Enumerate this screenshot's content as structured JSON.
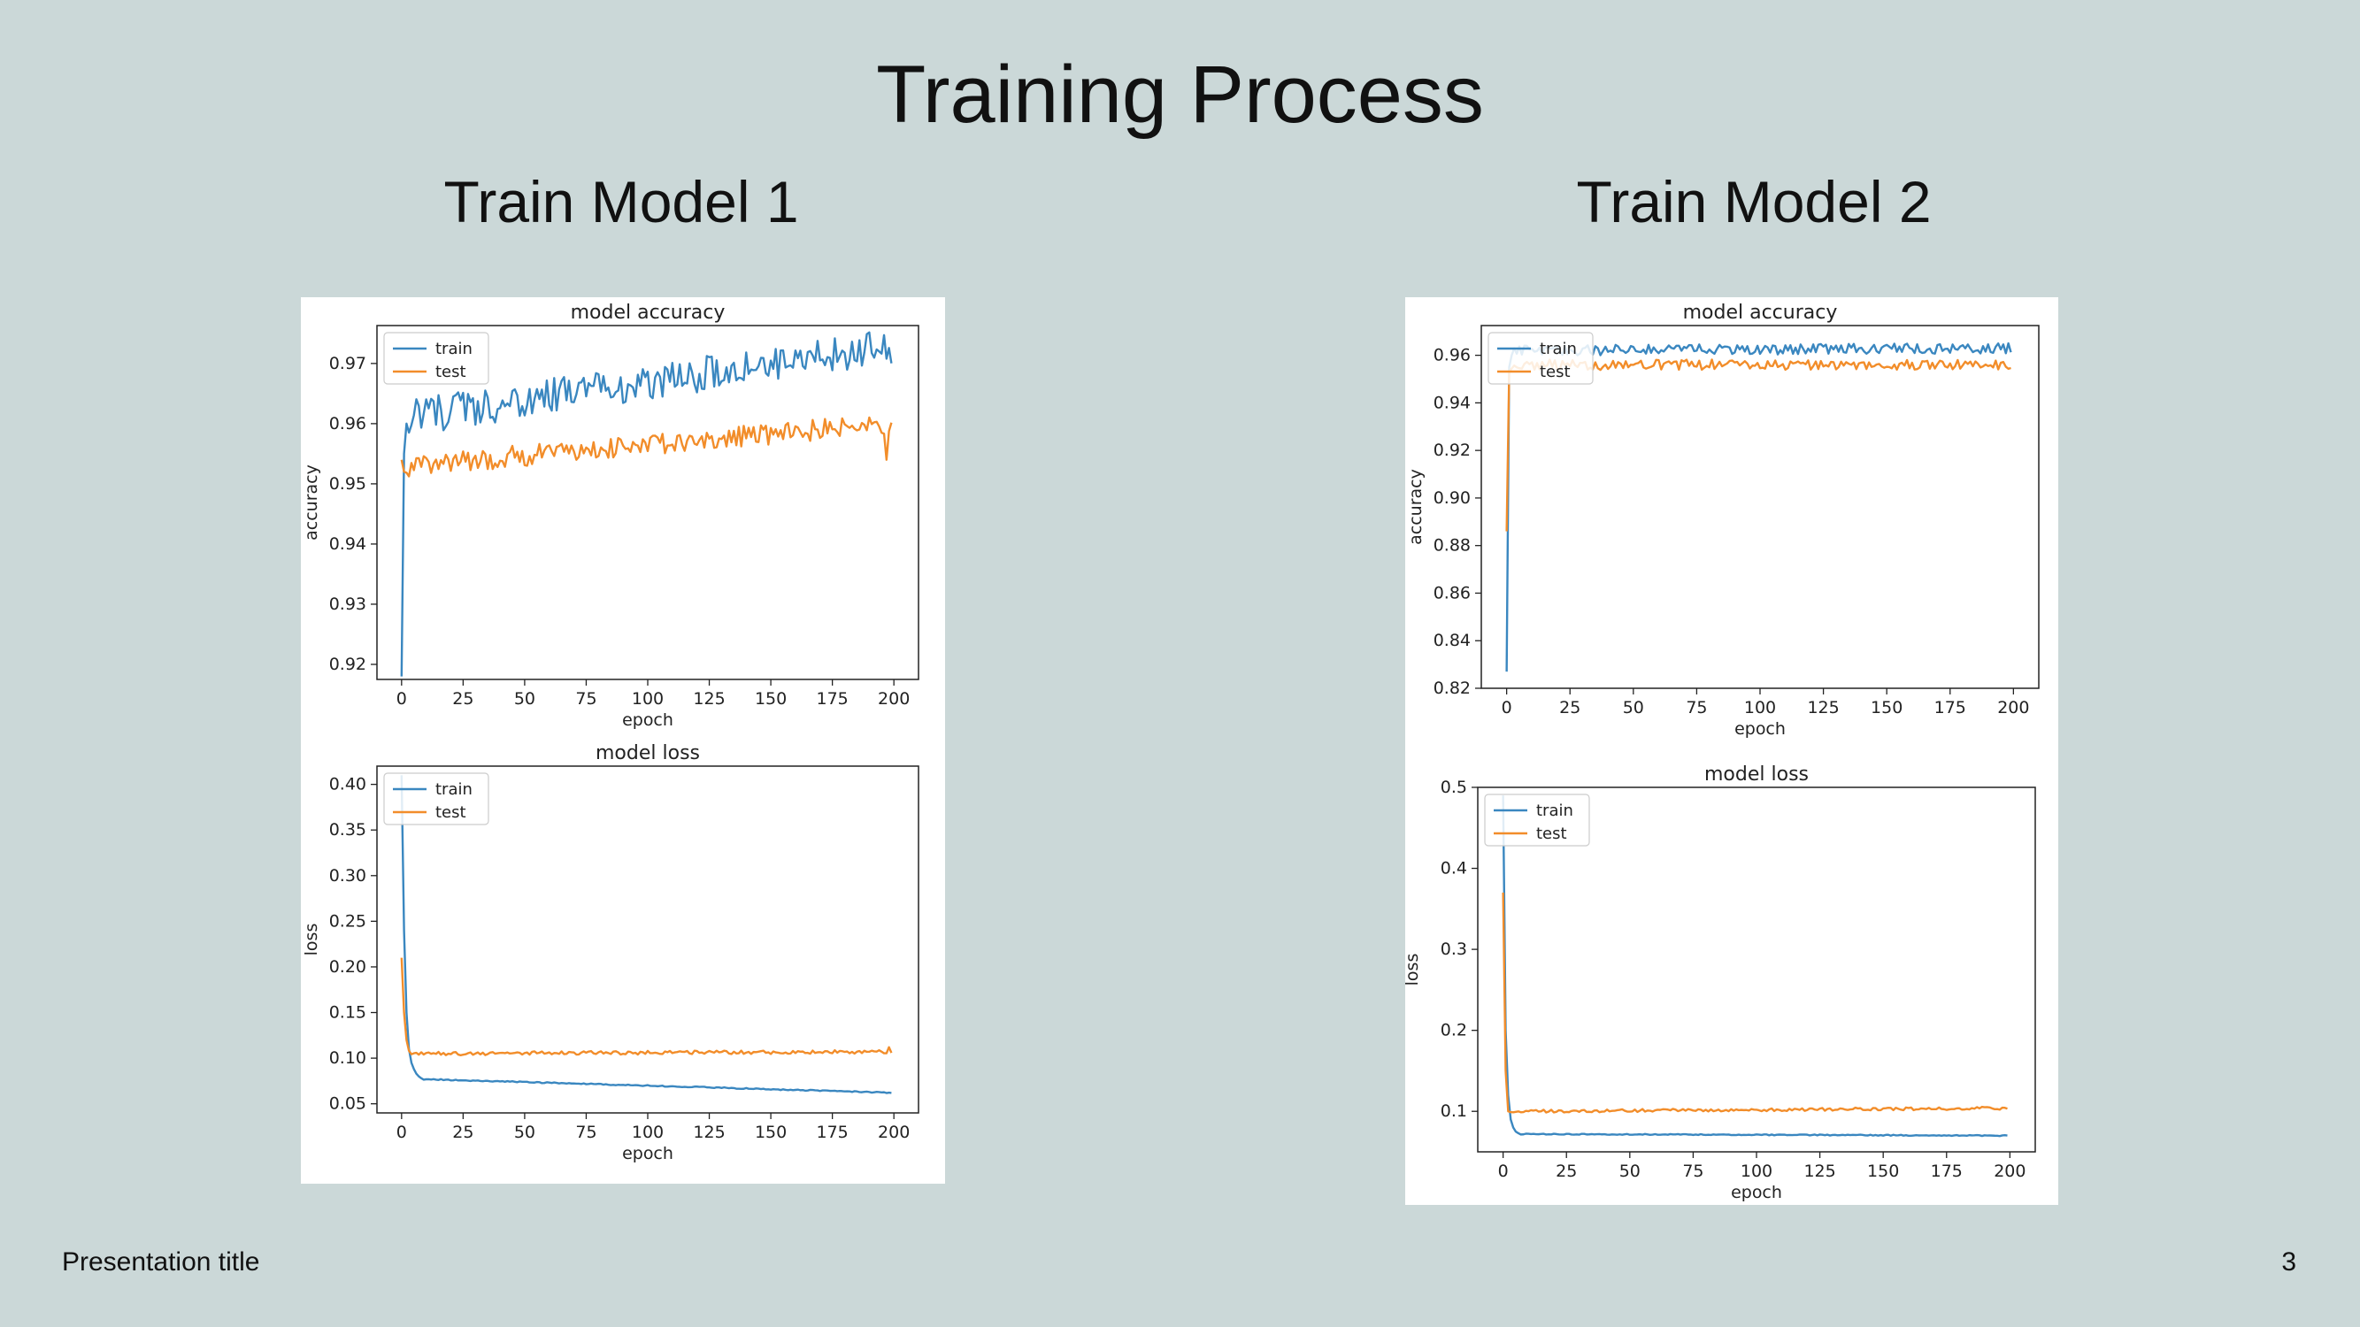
{
  "slide": {
    "title": "Training Process",
    "left_heading": "Train Model 1",
    "right_heading": "Train Model 2",
    "footer": "Presentation title",
    "page_number": "3"
  },
  "colors": {
    "train": "#3a87c0",
    "test": "#f28d2a"
  },
  "chart_data": [
    {
      "id": "m1-accuracy",
      "type": "line",
      "title": "model accuracy",
      "xlabel": "epoch",
      "ylabel": "accuracy",
      "xlim": [
        -10,
        210
      ],
      "ylim": [
        0.9175,
        0.9763
      ],
      "xticks": [
        0,
        25,
        50,
        75,
        100,
        125,
        150,
        175,
        200
      ],
      "yticks": [
        0.92,
        0.93,
        0.94,
        0.95,
        0.96,
        0.97
      ],
      "ytick_labels": [
        "0.92",
        "0.93",
        "0.94",
        "0.95",
        "0.96",
        "0.97"
      ],
      "legend": "upper-left",
      "series": [
        {
          "name": "train",
          "color": "#3a87c0",
          "start": 0.918,
          "jump": [
            0.955,
            0.96
          ],
          "from": 0.961,
          "to": 0.973,
          "noise": 0.003,
          "seed": 11,
          "n": 200
        },
        {
          "name": "test",
          "color": "#f28d2a",
          "start": 0.954,
          "jump": [
            0.952
          ],
          "from": 0.953,
          "to": 0.96,
          "noise": 0.0018,
          "seed": 23,
          "n": 200,
          "dips": [
            [
              197,
              0.954
            ]
          ]
        }
      ]
    },
    {
      "id": "m1-loss",
      "type": "line",
      "title": "model loss",
      "xlabel": "epoch",
      "ylabel": "loss",
      "xlim": [
        -10,
        210
      ],
      "ylim": [
        0.04,
        0.42
      ],
      "xticks": [
        0,
        25,
        50,
        75,
        100,
        125,
        150,
        175,
        200
      ],
      "yticks": [
        0.05,
        0.1,
        0.15,
        0.2,
        0.25,
        0.3,
        0.35,
        0.4
      ],
      "ytick_labels": [
        "0.05",
        "0.10",
        "0.15",
        "0.20",
        "0.25",
        "0.30",
        "0.35",
        "0.40"
      ],
      "legend": "upper-left",
      "series": [
        {
          "name": "train",
          "color": "#3a87c0",
          "start": 0.41,
          "jump": [
            0.24,
            0.15,
            0.11,
            0.095,
            0.088,
            0.083,
            0.08,
            0.078
          ],
          "from": 0.077,
          "to": 0.062,
          "noise": 0.0006,
          "seed": 5,
          "n": 200
        },
        {
          "name": "test",
          "color": "#f28d2a",
          "start": 0.21,
          "jump": [
            0.15,
            0.12,
            0.108
          ],
          "from": 0.105,
          "to": 0.107,
          "noise": 0.002,
          "seed": 41,
          "n": 200,
          "dips": [
            [
              198,
              0.112
            ]
          ]
        }
      ]
    },
    {
      "id": "m2-accuracy",
      "type": "line",
      "title": "model accuracy",
      "xlabel": "epoch",
      "ylabel": "accuracy",
      "xlim": [
        -10,
        210
      ],
      "ylim": [
        0.82,
        0.9725
      ],
      "xticks": [
        0,
        25,
        50,
        75,
        100,
        125,
        150,
        175,
        200
      ],
      "yticks": [
        0.82,
        0.84,
        0.86,
        0.88,
        0.9,
        0.92,
        0.94,
        0.96
      ],
      "ytick_labels": [
        "0.82",
        "0.84",
        "0.86",
        "0.88",
        "0.90",
        "0.92",
        "0.94",
        "0.96"
      ],
      "legend": "upper-left",
      "series": [
        {
          "name": "train",
          "color": "#3a87c0",
          "start": 0.827,
          "jump": [
            0.955
          ],
          "from": 0.962,
          "to": 0.963,
          "noise": 0.0022,
          "seed": 7,
          "n": 200
        },
        {
          "name": "test",
          "color": "#f28d2a",
          "start": 0.886,
          "jump": [
            0.953
          ],
          "from": 0.956,
          "to": 0.956,
          "noise": 0.0022,
          "seed": 19,
          "n": 200
        }
      ]
    },
    {
      "id": "m2-loss",
      "type": "line",
      "title": "model loss",
      "xlabel": "epoch",
      "ylabel": "loss",
      "xlim": [
        -10,
        210
      ],
      "ylim": [
        0.05,
        0.5
      ],
      "xticks": [
        0,
        25,
        50,
        75,
        100,
        125,
        150,
        175,
        200
      ],
      "yticks": [
        0.1,
        0.2,
        0.3,
        0.4,
        0.5
      ],
      "ytick_labels": [
        "0.1",
        "0.2",
        "0.3",
        "0.4",
        "0.5"
      ],
      "legend": "upper-left",
      "series": [
        {
          "name": "train",
          "color": "#3a87c0",
          "start": 0.49,
          "jump": [
            0.2,
            0.12,
            0.09,
            0.08,
            0.075,
            0.073
          ],
          "from": 0.072,
          "to": 0.07,
          "noise": 0.0006,
          "seed": 3,
          "n": 200
        },
        {
          "name": "test",
          "color": "#f28d2a",
          "start": 0.37,
          "jump": [
            0.15,
            0.1
          ],
          "from": 0.1,
          "to": 0.104,
          "noise": 0.0018,
          "seed": 31,
          "n": 200
        }
      ]
    }
  ]
}
